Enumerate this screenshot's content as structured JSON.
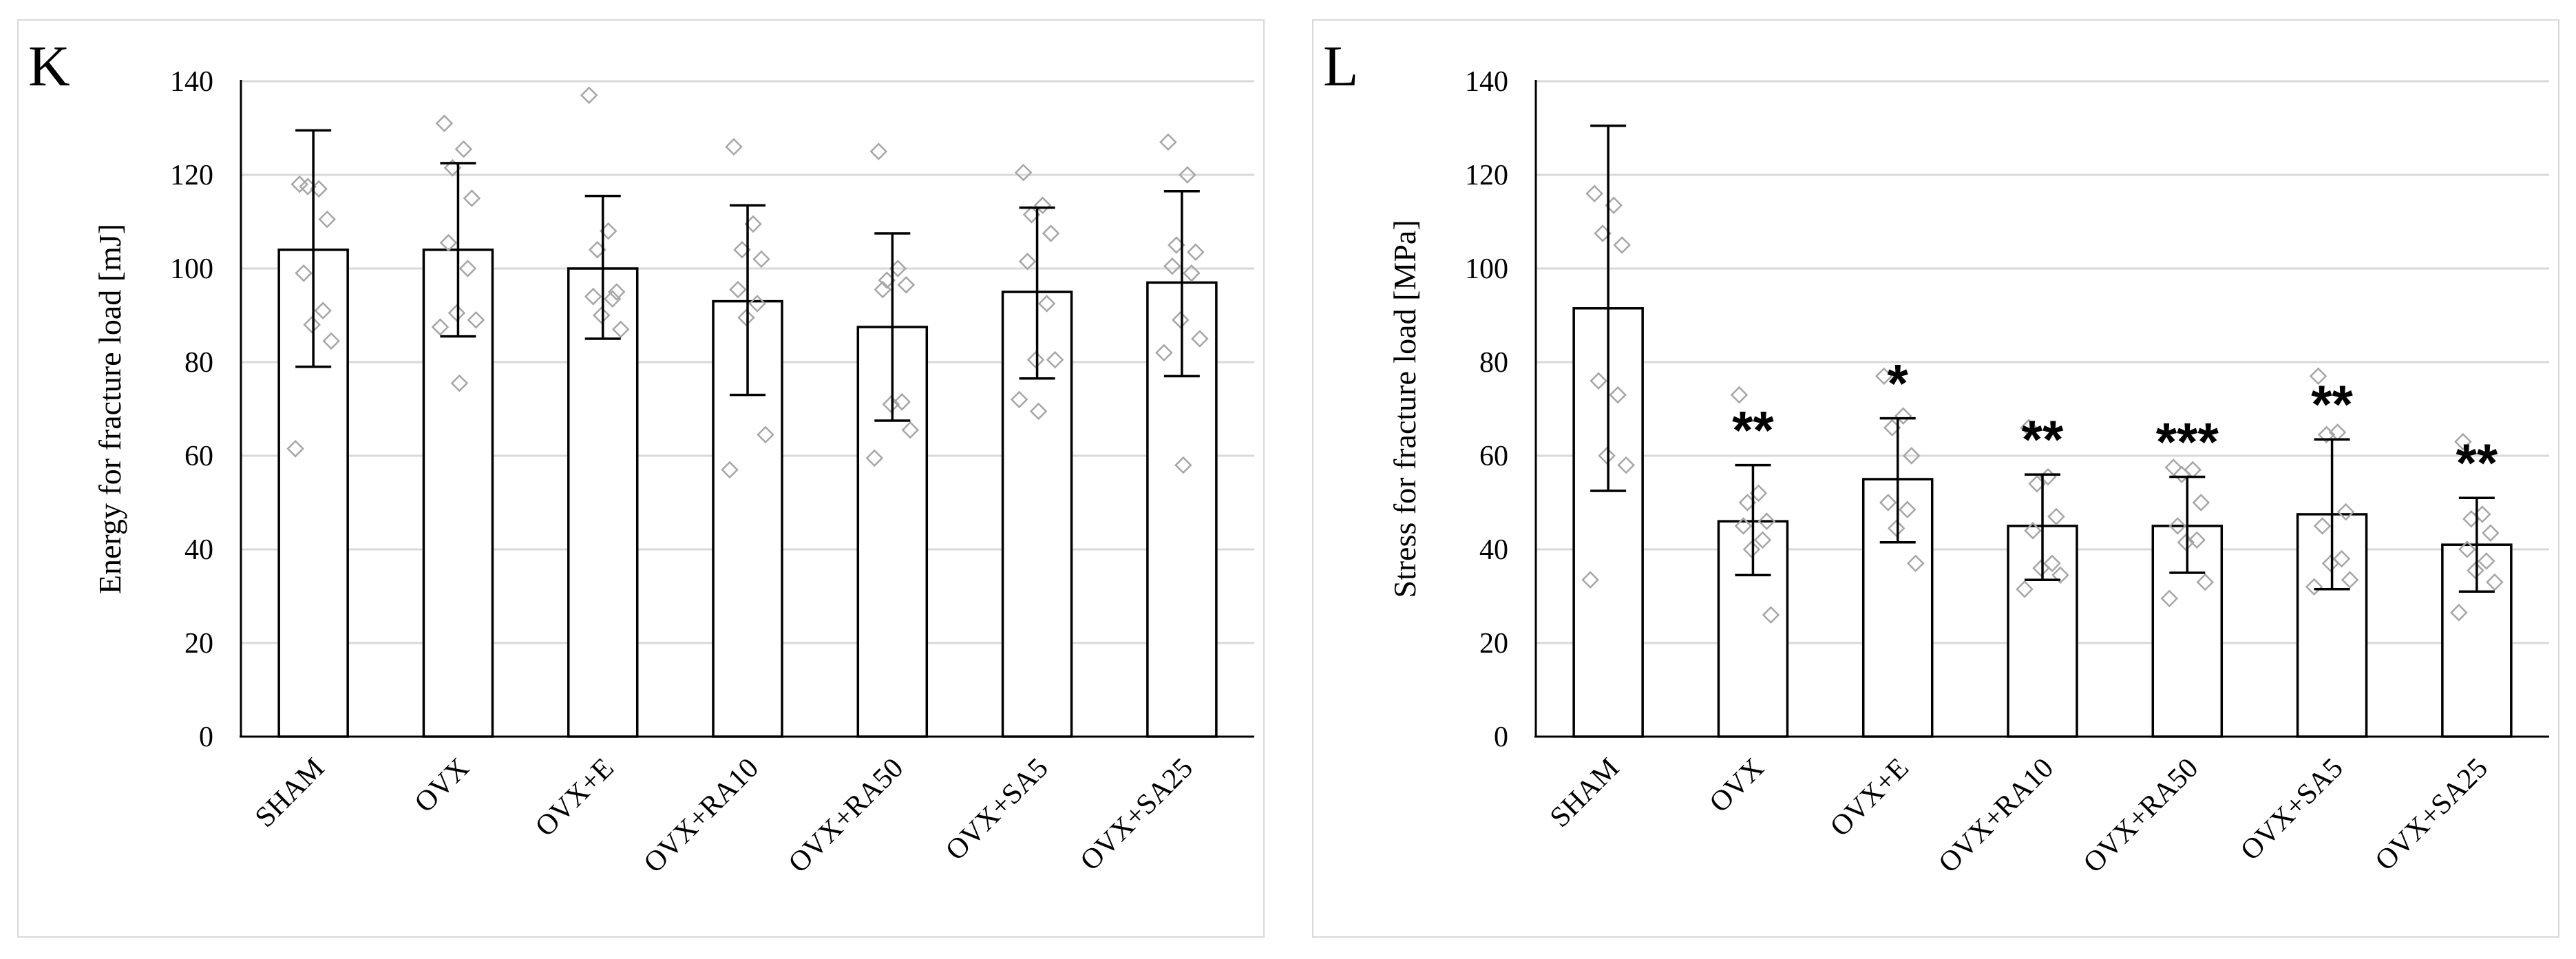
{
  "chart_data": [
    {
      "panel": "K",
      "type": "bar",
      "title": "",
      "xlabel": "",
      "ylabel": "Energy for fracture load [mJ]",
      "ylim": [
        0,
        140
      ],
      "yticks": [
        0,
        20,
        40,
        60,
        80,
        100,
        120,
        140
      ],
      "grid": true,
      "categories": [
        "SHAM",
        "OVX",
        "OVX+E",
        "OVX+RA10",
        "OVX+RA50",
        "OVX+SA5",
        "OVX+SA25"
      ],
      "values": [
        104,
        104,
        100,
        93,
        87.5,
        95,
        97
      ],
      "error_low": [
        79,
        85.5,
        85,
        73,
        67.5,
        76.5,
        77
      ],
      "error_high": [
        129.5,
        122.5,
        115.5,
        113.5,
        107.5,
        113,
        116.5
      ],
      "points": [
        [
          118,
          117,
          117.5,
          110.5,
          99,
          91,
          88,
          84.5,
          61.5
        ],
        [
          131,
          125.5,
          121.5,
          115,
          105.5,
          100,
          90.5,
          89,
          87.5,
          75.5
        ],
        [
          137,
          108,
          104,
          95,
          94,
          93.5,
          90,
          87
        ],
        [
          126,
          109.5,
          104,
          102,
          95.5,
          92.5,
          89.5,
          64.5,
          57
        ],
        [
          125,
          100,
          97.5,
          96.5,
          95.5,
          71.5,
          71,
          65.5,
          59.5
        ],
        [
          120.5,
          113.5,
          111.5,
          107.5,
          101.5,
          92.5,
          80.5,
          80.5,
          72,
          69.5
        ],
        [
          127,
          120,
          105,
          103.5,
          100.5,
          99,
          89,
          85,
          82,
          58
        ]
      ],
      "significance": [
        "",
        "",
        "",
        "",
        "",
        "",
        ""
      ],
      "colors": {
        "bar_fill": "#ffffff",
        "bar_stroke": "#000000",
        "marker": "#a6a6a6",
        "grid": "#d9d9d9"
      }
    },
    {
      "panel": "L",
      "type": "bar",
      "title": "",
      "xlabel": "",
      "ylabel": "Stress for fracture load [MPa]",
      "ylim": [
        0,
        140
      ],
      "yticks": [
        0,
        20,
        40,
        60,
        80,
        100,
        120,
        140
      ],
      "grid": true,
      "categories": [
        "SHAM",
        "OVX",
        "OVX+E",
        "OVX+RA10",
        "OVX+RA50",
        "OVX+SA5",
        "OVX+SA25"
      ],
      "values": [
        91.5,
        46,
        55,
        45,
        45,
        47.5,
        41
      ],
      "error_low": [
        52.5,
        34.5,
        41.5,
        33.5,
        35,
        31.5,
        31
      ],
      "error_high": [
        130.5,
        58,
        68,
        56,
        55.5,
        63.5,
        51
      ],
      "points": [
        [
          116,
          113.5,
          107.5,
          105,
          76,
          73,
          60,
          58,
          33.5
        ],
        [
          73,
          52,
          50,
          46,
          45,
          42,
          40,
          26
        ],
        [
          77,
          68.5,
          66,
          60,
          50,
          48.5,
          44.5,
          37
        ],
        [
          66,
          55.5,
          54,
          47,
          44,
          37,
          36,
          34.5,
          31.5
        ],
        [
          57.5,
          57,
          56,
          50,
          45,
          42,
          41.5,
          33,
          29.5
        ],
        [
          77,
          65,
          64.5,
          48,
          45,
          38,
          37,
          33.5,
          32
        ],
        [
          63,
          47.5,
          46.5,
          43.5,
          40,
          37.5,
          35.5,
          33,
          26.5
        ]
      ],
      "significance": [
        "",
        "**",
        "*",
        "**",
        "***",
        "**",
        "**"
      ],
      "colors": {
        "bar_fill": "#ffffff",
        "bar_stroke": "#000000",
        "marker": "#a6a6a6",
        "grid": "#d9d9d9"
      }
    }
  ]
}
